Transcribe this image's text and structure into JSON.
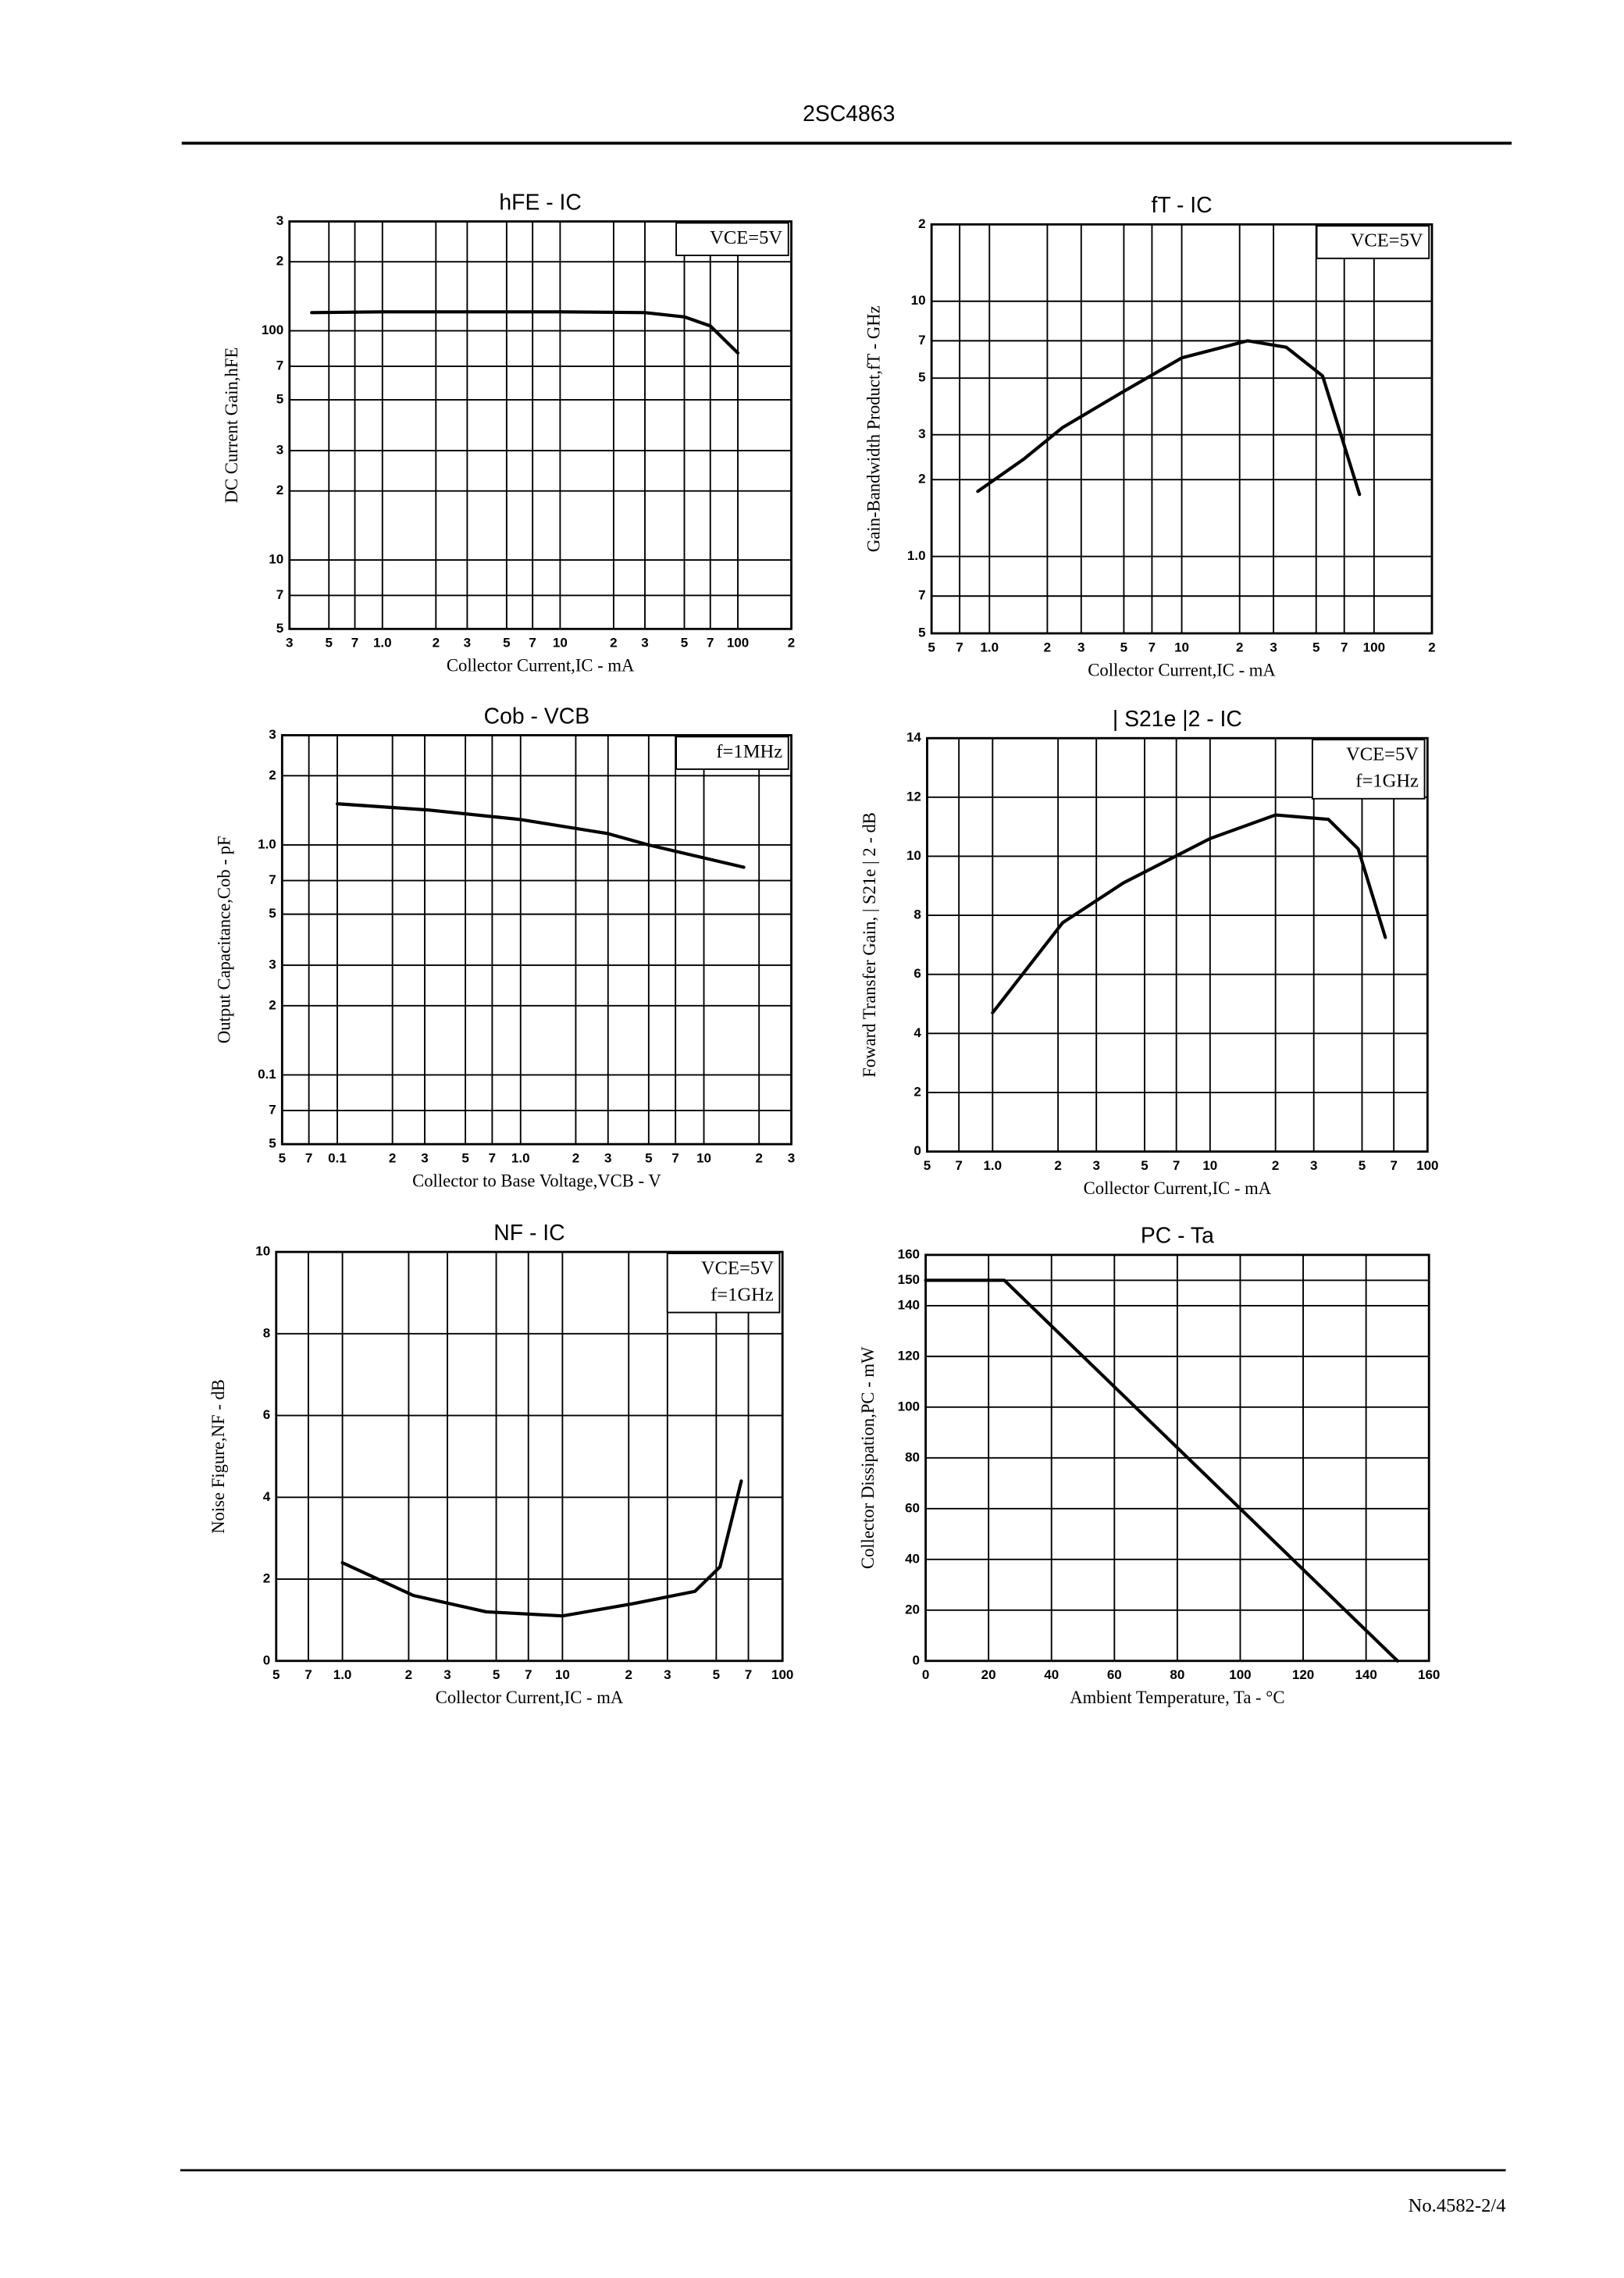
{
  "header": {
    "title": "2SC4863"
  },
  "footer": {
    "page": "No.4582-2/4"
  },
  "chart_data": [
    {
      "type": "line",
      "title": "hFE - IC",
      "annotations": [
        "VCE=5V"
      ],
      "xlabel": "Collector Current,IC - mA",
      "ylabel": "DC Current Gain,hFE",
      "xscale": "log",
      "yscale": "log",
      "grid": true,
      "color": "#000",
      "xlim": [
        0.3,
        200
      ],
      "ylim": [
        5,
        300
      ],
      "xticks": [
        {
          "value": 0.3,
          "label": "3"
        },
        {
          "value": 0.5,
          "label": "5"
        },
        {
          "value": 0.7,
          "label": "7"
        },
        {
          "value": 1,
          "label": "1.0"
        },
        2,
        3,
        5,
        7,
        10,
        {
          "value": 20,
          "label": "2"
        },
        {
          "value": 30,
          "label": "3"
        },
        {
          "value": 50,
          "label": "5"
        },
        {
          "value": 70,
          "label": "7"
        },
        100,
        {
          "value": 200,
          "label": "2"
        }
      ],
      "yticks": [
        5,
        7,
        10,
        {
          "value": 20,
          "label": "2"
        },
        {
          "value": 30,
          "label": "3"
        },
        {
          "value": 50,
          "label": "5"
        },
        {
          "value": 70,
          "label": "7"
        },
        100,
        {
          "value": 200,
          "label": "2"
        },
        {
          "value": 300,
          "label": "3"
        }
      ],
      "x": [
        0.4,
        1,
        3,
        10,
        30,
        50,
        70,
        100
      ],
      "values": [
        120,
        121,
        121,
        121,
        120,
        115,
        105,
        80
      ]
    },
    {
      "type": "line",
      "title": "fT - IC",
      "annotations": [
        "VCE=5V"
      ],
      "xlabel": "Collector Current,IC - mA",
      "ylabel": "Gain-Bandwidth Product,fT - GHz",
      "xscale": "log",
      "yscale": "log",
      "grid": true,
      "color": "#000",
      "xlim": [
        0.5,
        200
      ],
      "ylim": [
        0.5,
        20
      ],
      "xticks": [
        {
          "value": 0.5,
          "label": "5"
        },
        {
          "value": 0.7,
          "label": "7"
        },
        {
          "value": 1,
          "label": "1.0"
        },
        2,
        3,
        5,
        7,
        10,
        {
          "value": 20,
          "label": "2"
        },
        {
          "value": 30,
          "label": "3"
        },
        {
          "value": 50,
          "label": "5"
        },
        {
          "value": 70,
          "label": "7"
        },
        100,
        {
          "value": 200,
          "label": "2"
        }
      ],
      "yticks": [
        {
          "value": 0.5,
          "label": "5"
        },
        {
          "value": 0.7,
          "label": "7"
        },
        {
          "value": 1,
          "label": "1.0"
        },
        2,
        3,
        5,
        7,
        10,
        {
          "value": 20,
          "label": "2"
        }
      ],
      "x": [
        0.87,
        1.5,
        2.4,
        4.9,
        10,
        22,
        35,
        54,
        84
      ],
      "values": [
        1.8,
        2.4,
        3.2,
        4.4,
        6.0,
        7.0,
        6.6,
        5.1,
        1.75
      ]
    },
    {
      "type": "line",
      "title": "Cob - VCB",
      "annotations": [
        "f=1MHz"
      ],
      "xlabel": "Collector to Base Voltage,VCB - V",
      "ylabel": "Output Capacitance,Cob - pF",
      "xscale": "log",
      "yscale": "log",
      "grid": true,
      "color": "#000",
      "xlim": [
        0.05,
        30
      ],
      "ylim": [
        0.05,
        3
      ],
      "xticks": [
        {
          "value": 0.05,
          "label": "5"
        },
        {
          "value": 0.07,
          "label": "7"
        },
        0.1,
        {
          "value": 0.2,
          "label": "2"
        },
        {
          "value": 0.3,
          "label": "3"
        },
        {
          "value": 0.5,
          "label": "5"
        },
        {
          "value": 0.7,
          "label": "7"
        },
        {
          "value": 1,
          "label": "1.0"
        },
        2,
        3,
        5,
        7,
        10,
        {
          "value": 20,
          "label": "2"
        },
        {
          "value": 30,
          "label": "3"
        }
      ],
      "yticks": [
        {
          "value": 0.05,
          "label": "5"
        },
        {
          "value": 0.07,
          "label": "7"
        },
        0.1,
        {
          "value": 0.2,
          "label": "2"
        },
        {
          "value": 0.3,
          "label": "3"
        },
        {
          "value": 0.5,
          "label": "5"
        },
        {
          "value": 0.7,
          "label": "7"
        },
        {
          "value": 1,
          "label": "1.0"
        },
        2,
        3
      ],
      "x": [
        0.1,
        0.31,
        1,
        3,
        5,
        16.5
      ],
      "values": [
        1.51,
        1.42,
        1.29,
        1.12,
        1.0,
        0.8
      ]
    },
    {
      "type": "line",
      "title": "| S21e |2 - IC",
      "annotations": [
        "VCE=5V",
        "f=1GHz"
      ],
      "xlabel": "Collector Current,IC - mA",
      "ylabel": "Foward Transfer Gain, | S21e | 2 - dB",
      "xscale": "log",
      "yscale": "linear",
      "grid": true,
      "color": "#000",
      "xlim": [
        0.5,
        100
      ],
      "ylim": [
        0,
        14
      ],
      "xticks": [
        {
          "value": 0.5,
          "label": "5"
        },
        {
          "value": 0.7,
          "label": "7"
        },
        {
          "value": 1,
          "label": "1.0"
        },
        2,
        3,
        5,
        7,
        10,
        {
          "value": 20,
          "label": "2"
        },
        {
          "value": 30,
          "label": "3"
        },
        {
          "value": 50,
          "label": "5"
        },
        {
          "value": 70,
          "label": "7"
        },
        100
      ],
      "yticks": [
        0,
        2,
        4,
        6,
        8,
        10,
        12,
        14
      ],
      "x": [
        1,
        2.1,
        4,
        10,
        20,
        35,
        48,
        64
      ],
      "values": [
        4.7,
        7.75,
        9.1,
        10.6,
        11.4,
        11.25,
        10.25,
        7.25
      ]
    },
    {
      "type": "line",
      "title": "NF - IC",
      "annotations": [
        "VCE=5V",
        "f=1GHz"
      ],
      "xlabel": "Collector Current,IC - mA",
      "ylabel": "Noise Figure,NF - dB",
      "xscale": "log",
      "yscale": "linear",
      "grid": true,
      "color": "#000",
      "xlim": [
        0.5,
        100
      ],
      "ylim": [
        0,
        10
      ],
      "xticks": [
        {
          "value": 0.5,
          "label": "5"
        },
        {
          "value": 0.7,
          "label": "7"
        },
        {
          "value": 1,
          "label": "1.0"
        },
        2,
        3,
        5,
        7,
        10,
        {
          "value": 20,
          "label": "2"
        },
        {
          "value": 30,
          "label": "3"
        },
        {
          "value": 50,
          "label": "5"
        },
        {
          "value": 70,
          "label": "7"
        },
        100
      ],
      "yticks": [
        0,
        2,
        4,
        6,
        8,
        10
      ],
      "x": [
        1,
        2.1,
        4.5,
        10,
        21,
        40,
        52,
        65
      ],
      "values": [
        2.4,
        1.6,
        1.2,
        1.1,
        1.4,
        1.7,
        2.3,
        4.4
      ]
    },
    {
      "type": "line",
      "title": "PC - Ta",
      "annotations": [],
      "xlabel": "Ambient Temperature, Ta - °C",
      "ylabel": "Collector Dissipation,PC - mW",
      "xscale": "linear",
      "yscale": "linear",
      "grid": true,
      "color": "#000",
      "xlim": [
        0,
        160
      ],
      "ylim": [
        0,
        160
      ],
      "xticks": [
        0,
        20,
        40,
        60,
        80,
        100,
        120,
        140,
        160
      ],
      "yticks": [
        0,
        20,
        40,
        60,
        80,
        100,
        120,
        140,
        150,
        160
      ],
      "x": [
        0,
        25,
        150
      ],
      "values": [
        150,
        150,
        0
      ]
    }
  ]
}
